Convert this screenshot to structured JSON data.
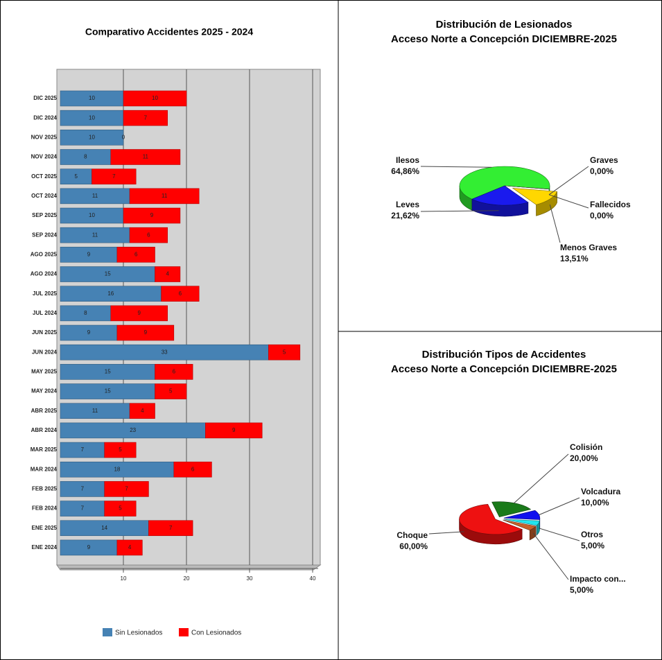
{
  "chart_data": [
    {
      "type": "bar",
      "orientation": "horizontal",
      "stacked": true,
      "title": "Comparativo Accidentes 2025 - 2024",
      "categories": [
        "DIC 2025",
        "DIC 2024",
        "NOV 2025",
        "NOV 2024",
        "OCT 2025",
        "OCT 2024",
        "SEP 2025",
        "SEP 2024",
        "AGO 2025",
        "AGO 2024",
        "JUL 2025",
        "JUL 2024",
        "JUN 2025",
        "JUN 2024",
        "MAY 2025",
        "MAY 2024",
        "ABR 2025",
        "ABR 2024",
        "MAR 2025",
        "MAR 2024",
        "FEB 2025",
        "FEB 2024",
        "ENE 2025",
        "ENE 2024"
      ],
      "series": [
        {
          "name": "Sin Lesionados",
          "color": "#4682b4",
          "values": [
            10,
            10,
            10,
            8,
            5,
            11,
            10,
            11,
            9,
            15,
            16,
            8,
            9,
            33,
            15,
            15,
            11,
            23,
            7,
            18,
            7,
            7,
            14,
            9
          ]
        },
        {
          "name": "Con Lesionados",
          "color": "#ff0000",
          "values": [
            10,
            7,
            0,
            11,
            7,
            11,
            9,
            6,
            6,
            4,
            6,
            9,
            9,
            5,
            6,
            5,
            4,
            9,
            5,
            6,
            7,
            5,
            7,
            4
          ]
        }
      ],
      "xlim": [
        0,
        40
      ],
      "xticks": [
        10,
        20,
        30,
        40
      ],
      "grid": true,
      "legend": "bottom"
    },
    {
      "type": "pie",
      "title": "Distribución de Lesionados",
      "subtitle": "Acceso Norte a Concepción DICIEMBRE-2025",
      "labels": [
        "Ilesos",
        "Graves",
        "Fallecidos",
        "Menos Graves",
        "Leves"
      ],
      "values": [
        64.86,
        0,
        0,
        13.51,
        21.62
      ],
      "value_labels": [
        "64,86%",
        "0,00%",
        "0,00%",
        "13,51%",
        "21,62%"
      ],
      "colors": [
        "#33ee33",
        "#8b4513",
        "#888888",
        "#ffd700",
        "#1a1aee"
      ]
    },
    {
      "type": "pie",
      "title": "Distribución Tipos de Accidentes",
      "subtitle": "Acceso Norte a Concepción DICIEMBRE-2025",
      "labels": [
        "Colisión",
        "Volcadura",
        "Otros",
        "Impacto  con...",
        "Choque"
      ],
      "values": [
        20,
        10,
        5,
        5,
        60
      ],
      "value_labels": [
        "20,00%",
        "10,00%",
        "5,00%",
        "5,00%",
        "60,00%"
      ],
      "colors": [
        "#1a7a1a",
        "#1010ee",
        "#22e5ee",
        "#c8602a",
        "#ee1111"
      ]
    }
  ]
}
